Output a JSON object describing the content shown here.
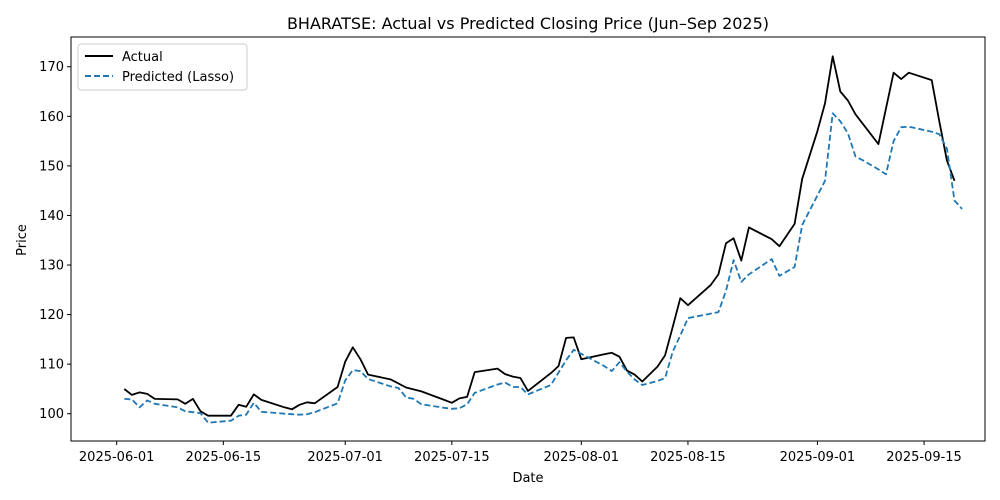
{
  "chart_data": {
    "type": "line",
    "title": "BHARATSE: Actual vs Predicted Closing Price (Jun–Sep 2025)",
    "xlabel": "Date",
    "ylabel": "Price",
    "x_tick_labels": [
      "2025-06-01",
      "2025-06-15",
      "2025-07-01",
      "2025-07-15",
      "2025-08-01",
      "2025-08-15",
      "2025-09-01",
      "2025-09-15"
    ],
    "y_ticks": [
      100,
      110,
      120,
      130,
      140,
      150,
      160,
      170
    ],
    "xlim": [
      "2025-05-26",
      "2025-09-23"
    ],
    "ylim": [
      94.5,
      176
    ],
    "grid": false,
    "legend_position": "top-left",
    "series": [
      {
        "name": "Actual",
        "style": "solid",
        "color": "#000000",
        "points": [
          [
            "2025-06-02",
            105.0
          ],
          [
            "2025-06-03",
            103.8
          ],
          [
            "2025-06-04",
            104.3
          ],
          [
            "2025-06-05",
            104.0
          ],
          [
            "2025-06-06",
            103.0
          ],
          [
            "2025-06-09",
            102.9
          ],
          [
            "2025-06-10",
            102.0
          ],
          [
            "2025-06-11",
            103.0
          ],
          [
            "2025-06-12",
            100.5
          ],
          [
            "2025-06-13",
            99.6
          ],
          [
            "2025-06-16",
            99.6
          ],
          [
            "2025-06-17",
            101.8
          ],
          [
            "2025-06-18",
            101.4
          ],
          [
            "2025-06-19",
            103.9
          ],
          [
            "2025-06-20",
            102.8
          ],
          [
            "2025-06-23",
            101.3
          ],
          [
            "2025-06-24",
            100.9
          ],
          [
            "2025-06-25",
            101.8
          ],
          [
            "2025-06-26",
            102.3
          ],
          [
            "2025-06-27",
            102.1
          ],
          [
            "2025-06-30",
            105.4
          ],
          [
            "2025-07-01",
            110.5
          ],
          [
            "2025-07-02",
            113.4
          ],
          [
            "2025-07-03",
            111.0
          ],
          [
            "2025-07-04",
            107.9
          ],
          [
            "2025-07-07",
            106.9
          ],
          [
            "2025-07-08",
            106.1
          ],
          [
            "2025-07-09",
            105.3
          ],
          [
            "2025-07-11",
            104.5
          ],
          [
            "2025-07-14",
            102.8
          ],
          [
            "2025-07-15",
            102.2
          ],
          [
            "2025-07-16",
            103.1
          ],
          [
            "2025-07-17",
            103.4
          ],
          [
            "2025-07-18",
            108.4
          ],
          [
            "2025-07-21",
            109.1
          ],
          [
            "2025-07-22",
            108.0
          ],
          [
            "2025-07-23",
            107.5
          ],
          [
            "2025-07-24",
            107.2
          ],
          [
            "2025-07-25",
            104.6
          ],
          [
            "2025-07-28",
            108.2
          ],
          [
            "2025-07-29",
            109.6
          ],
          [
            "2025-07-30",
            115.3
          ],
          [
            "2025-07-31",
            115.4
          ],
          [
            "2025-08-01",
            111.0
          ],
          [
            "2025-08-04",
            112.0
          ],
          [
            "2025-08-05",
            112.3
          ],
          [
            "2025-08-06",
            111.5
          ],
          [
            "2025-08-07",
            108.7
          ],
          [
            "2025-08-08",
            107.9
          ],
          [
            "2025-08-09",
            106.5
          ],
          [
            "2025-08-11",
            109.5
          ],
          [
            "2025-08-12",
            111.8
          ],
          [
            "2025-08-13",
            117.5
          ],
          [
            "2025-08-14",
            123.3
          ],
          [
            "2025-08-15",
            121.9
          ],
          [
            "2025-08-18",
            126.0
          ],
          [
            "2025-08-19",
            128.1
          ],
          [
            "2025-08-20",
            134.4
          ],
          [
            "2025-08-21",
            135.4
          ],
          [
            "2025-08-22",
            130.9
          ],
          [
            "2025-08-23",
            137.6
          ],
          [
            "2025-08-26",
            135.2
          ],
          [
            "2025-08-27",
            133.8
          ],
          [
            "2025-08-29",
            138.3
          ],
          [
            "2025-08-30",
            147.4
          ],
          [
            "2025-09-01",
            157.0
          ],
          [
            "2025-09-02",
            162.6
          ],
          [
            "2025-09-03",
            172.1
          ],
          [
            "2025-09-04",
            165.0
          ],
          [
            "2025-09-05",
            163.2
          ],
          [
            "2025-09-06",
            160.4
          ],
          [
            "2025-09-09",
            154.4
          ],
          [
            "2025-09-11",
            168.8
          ],
          [
            "2025-09-12",
            167.5
          ],
          [
            "2025-09-13",
            168.8
          ],
          [
            "2025-09-16",
            167.3
          ],
          [
            "2025-09-17",
            159.0
          ],
          [
            "2025-09-18",
            151.1
          ],
          [
            "2025-09-19",
            147.0
          ]
        ]
      },
      {
        "name": "Predicted (Lasso)",
        "style": "dashed",
        "color": "#1f77b4",
        "points": [
          [
            "2025-06-02",
            103.0
          ],
          [
            "2025-06-03",
            102.9
          ],
          [
            "2025-06-04",
            101.3
          ],
          [
            "2025-06-05",
            102.7
          ],
          [
            "2025-06-06",
            102.0
          ],
          [
            "2025-06-09",
            101.3
          ],
          [
            "2025-06-10",
            100.5
          ],
          [
            "2025-06-11",
            100.3
          ],
          [
            "2025-06-12",
            100.1
          ],
          [
            "2025-06-13",
            98.2
          ],
          [
            "2025-06-16",
            98.6
          ],
          [
            "2025-06-17",
            99.6
          ],
          [
            "2025-06-18",
            99.8
          ],
          [
            "2025-06-19",
            102.2
          ],
          [
            "2025-06-20",
            100.4
          ],
          [
            "2025-06-23",
            100.0
          ],
          [
            "2025-06-24",
            99.9
          ],
          [
            "2025-06-25",
            99.8
          ],
          [
            "2025-06-26",
            99.9
          ],
          [
            "2025-06-27",
            100.3
          ],
          [
            "2025-06-30",
            102.1
          ],
          [
            "2025-07-01",
            106.7
          ],
          [
            "2025-07-02",
            108.8
          ],
          [
            "2025-07-03",
            108.6
          ],
          [
            "2025-07-04",
            107.0
          ],
          [
            "2025-07-07",
            105.5
          ],
          [
            "2025-07-08",
            105.2
          ],
          [
            "2025-07-09",
            103.3
          ],
          [
            "2025-07-10",
            103.0
          ],
          [
            "2025-07-11",
            101.9
          ],
          [
            "2025-07-14",
            101.2
          ],
          [
            "2025-07-15",
            101.0
          ],
          [
            "2025-07-16",
            101.1
          ],
          [
            "2025-07-17",
            101.9
          ],
          [
            "2025-07-18",
            104.2
          ],
          [
            "2025-07-21",
            105.9
          ],
          [
            "2025-07-22",
            106.3
          ],
          [
            "2025-07-23",
            105.4
          ],
          [
            "2025-07-24",
            105.4
          ],
          [
            "2025-07-25",
            103.9
          ],
          [
            "2025-07-28",
            105.8
          ],
          [
            "2025-07-29",
            108.3
          ],
          [
            "2025-07-30",
            110.8
          ],
          [
            "2025-07-31",
            112.9
          ],
          [
            "2025-08-01",
            112.1
          ],
          [
            "2025-08-04",
            109.6
          ],
          [
            "2025-08-05",
            108.6
          ],
          [
            "2025-08-06",
            110.4
          ],
          [
            "2025-08-07",
            108.5
          ],
          [
            "2025-08-08",
            106.9
          ],
          [
            "2025-08-09",
            105.8
          ],
          [
            "2025-08-11",
            106.6
          ],
          [
            "2025-08-12",
            107.2
          ],
          [
            "2025-08-13",
            112.5
          ],
          [
            "2025-08-14",
            115.8
          ],
          [
            "2025-08-15",
            119.3
          ],
          [
            "2025-08-18",
            120.2
          ],
          [
            "2025-08-19",
            120.5
          ],
          [
            "2025-08-20",
            124.8
          ],
          [
            "2025-08-21",
            131.0
          ],
          [
            "2025-08-22",
            126.6
          ],
          [
            "2025-08-23",
            128.1
          ],
          [
            "2025-08-26",
            131.2
          ],
          [
            "2025-08-27",
            127.8
          ],
          [
            "2025-08-29",
            129.6
          ],
          [
            "2025-08-30",
            138.1
          ],
          [
            "2025-09-02",
            147.0
          ],
          [
            "2025-09-03",
            160.6
          ],
          [
            "2025-09-04",
            159.0
          ],
          [
            "2025-09-05",
            156.6
          ],
          [
            "2025-09-06",
            151.9
          ],
          [
            "2025-09-07",
            151.1
          ],
          [
            "2025-09-09",
            149.3
          ],
          [
            "2025-09-10",
            148.3
          ],
          [
            "2025-09-11",
            155.0
          ],
          [
            "2025-09-12",
            157.8
          ],
          [
            "2025-09-13",
            157.9
          ],
          [
            "2025-09-16",
            156.9
          ],
          [
            "2025-09-17",
            156.4
          ],
          [
            "2025-09-18",
            153.5
          ],
          [
            "2025-09-19",
            143.0
          ],
          [
            "2025-09-20",
            141.3
          ]
        ]
      }
    ]
  }
}
